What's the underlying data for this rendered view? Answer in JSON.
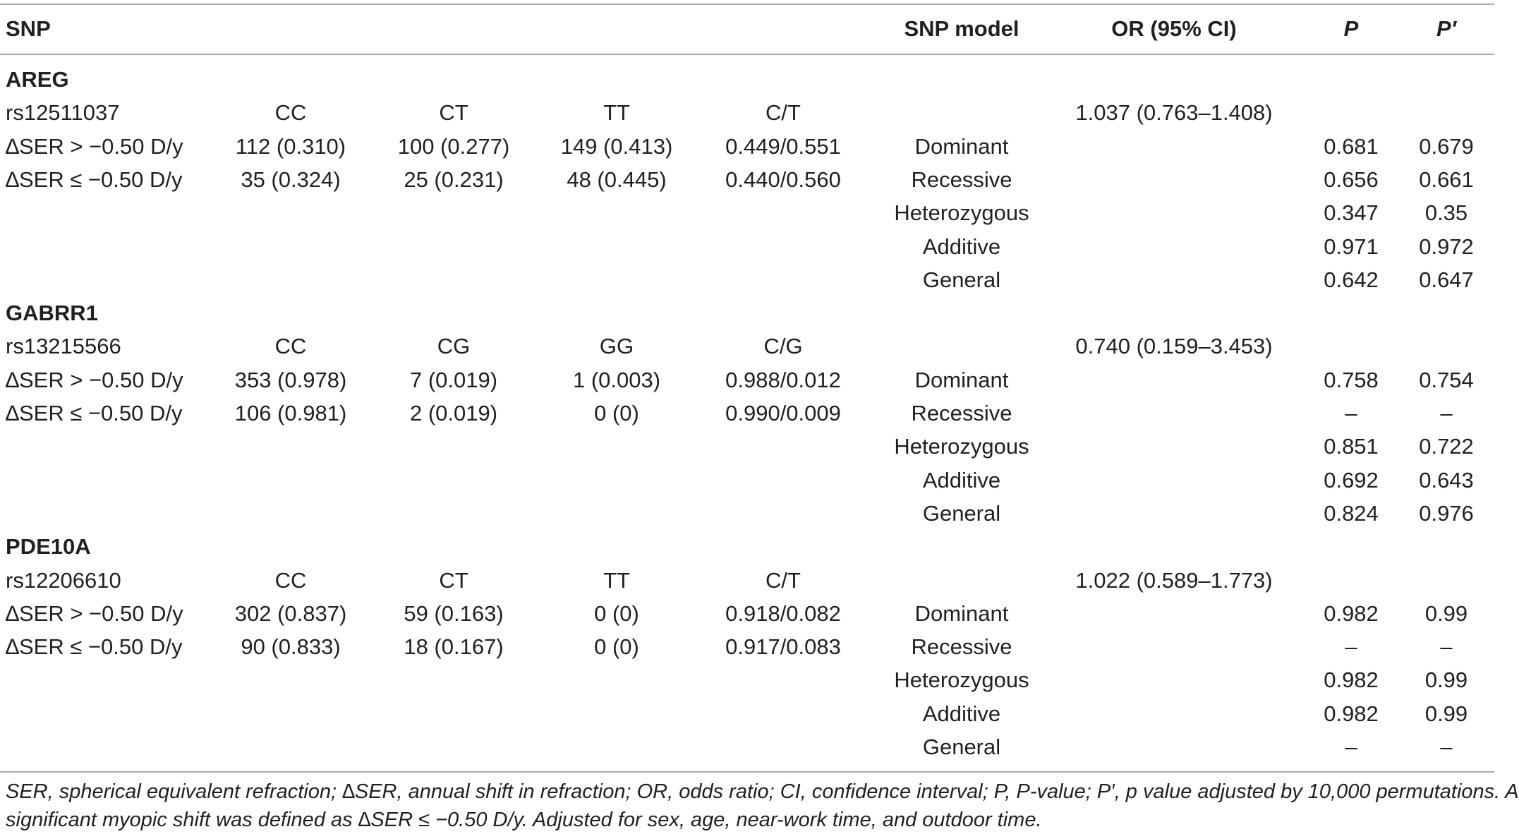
{
  "header": {
    "snp": "SNP",
    "snp_model": "SNP model",
    "or_ci": "OR (95% CI)",
    "p": "P",
    "p_adj": "P′"
  },
  "groups": [
    {
      "gene": "AREG",
      "snp": {
        "id": "rs12511037",
        "g1": "CC",
        "g2": "CT",
        "g3": "TT",
        "allele": "C/T",
        "or": "1.037 (0.763–1.408)"
      },
      "rows": [
        {
          "label": "∆SER > −0.50 D/y",
          "g1": "112 (0.310)",
          "g2": "100 (0.277)",
          "g3": "149 (0.413)",
          "allele": "0.449/0.551",
          "model": "Dominant",
          "p": "0.681",
          "p_adj": "0.679"
        },
        {
          "label": "∆SER ≤ −0.50 D/y",
          "g1": "35 (0.324)",
          "g2": "25 (0.231)",
          "g3": "48 (0.445)",
          "allele": "0.440/0.560",
          "model": "Recessive",
          "p": "0.656",
          "p_adj": "0.661"
        },
        {
          "label": "",
          "g1": "",
          "g2": "",
          "g3": "",
          "allele": "",
          "model": "Heterozygous",
          "p": "0.347",
          "p_adj": "0.35"
        },
        {
          "label": "",
          "g1": "",
          "g2": "",
          "g3": "",
          "allele": "",
          "model": "Additive",
          "p": "0.971",
          "p_adj": "0.972"
        },
        {
          "label": "",
          "g1": "",
          "g2": "",
          "g3": "",
          "allele": "",
          "model": "General",
          "p": "0.642",
          "p_adj": "0.647"
        }
      ]
    },
    {
      "gene": "GABRR1",
      "snp": {
        "id": "rs13215566",
        "g1": "CC",
        "g2": "CG",
        "g3": "GG",
        "allele": "C/G",
        "or": "0.740 (0.159–3.453)"
      },
      "rows": [
        {
          "label": "∆SER > −0.50 D/y",
          "g1": "353 (0.978)",
          "g2": "7 (0.019)",
          "g3": "1 (0.003)",
          "allele": "0.988/0.012",
          "model": "Dominant",
          "p": "0.758",
          "p_adj": "0.754"
        },
        {
          "label": "∆SER ≤ −0.50 D/y",
          "g1": "106 (0.981)",
          "g2": "2 (0.019)",
          "g3": "0 (0)",
          "allele": "0.990/0.009",
          "model": "Recessive",
          "p": "–",
          "p_adj": "–"
        },
        {
          "label": "",
          "g1": "",
          "g2": "",
          "g3": "",
          "allele": "",
          "model": "Heterozygous",
          "p": "0.851",
          "p_adj": "0.722"
        },
        {
          "label": "",
          "g1": "",
          "g2": "",
          "g3": "",
          "allele": "",
          "model": "Additive",
          "p": "0.692",
          "p_adj": "0.643"
        },
        {
          "label": "",
          "g1": "",
          "g2": "",
          "g3": "",
          "allele": "",
          "model": "General",
          "p": "0.824",
          "p_adj": "0.976"
        }
      ]
    },
    {
      "gene": "PDE10A",
      "snp": {
        "id": "rs12206610",
        "g1": "CC",
        "g2": "CT",
        "g3": "TT",
        "allele": "C/T",
        "or": "1.022 (0.589–1.773)"
      },
      "rows": [
        {
          "label": "∆SER > −0.50 D/y",
          "g1": "302 (0.837)",
          "g2": "59 (0.163)",
          "g3": "0 (0)",
          "allele": "0.918/0.082",
          "model": "Dominant",
          "p": "0.982",
          "p_adj": "0.99"
        },
        {
          "label": "∆SER ≤ −0.50 D/y",
          "g1": "90 (0.833)",
          "g2": "18 (0.167)",
          "g3": "0 (0)",
          "allele": "0.917/0.083",
          "model": "Recessive",
          "p": "–",
          "p_adj": "–"
        },
        {
          "label": "",
          "g1": "",
          "g2": "",
          "g3": "",
          "allele": "",
          "model": "Heterozygous",
          "p": "0.982",
          "p_adj": "0.99"
        },
        {
          "label": "",
          "g1": "",
          "g2": "",
          "g3": "",
          "allele": "",
          "model": "Additive",
          "p": "0.982",
          "p_adj": "0.99"
        },
        {
          "label": "",
          "g1": "",
          "g2": "",
          "g3": "",
          "allele": "",
          "model": "General",
          "p": "–",
          "p_adj": "–"
        }
      ]
    }
  ],
  "footnote": {
    "line1": "SER, spherical equivalent refraction; ∆SER, annual shift in refraction; OR, odds ratio; CI, confidence interval; P, P-value; P′, p value adjusted by 10,000 permutations. A",
    "line2": "significant myopic shift was defined as ∆SER ≤ −0.50 D/y. Adjusted for sex, age, near-work time, and outdoor time."
  }
}
